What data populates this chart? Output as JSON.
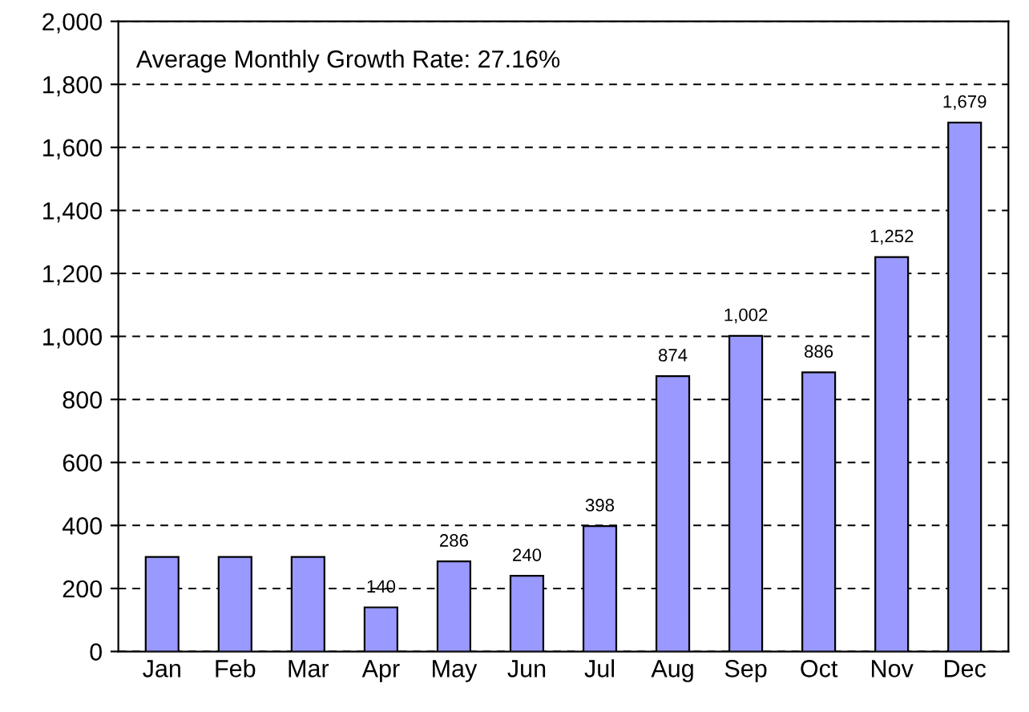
{
  "chart_data": {
    "type": "bar",
    "categories": [
      "Jan",
      "Feb",
      "Mar",
      "Apr",
      "May",
      "Jun",
      "Jul",
      "Aug",
      "Sep",
      "Oct",
      "Nov",
      "Dec"
    ],
    "values": [
      300,
      300,
      300,
      140,
      286,
      240,
      398,
      874,
      1002,
      886,
      1252,
      1679
    ],
    "value_labels": [
      null,
      null,
      null,
      "140",
      "286",
      "240",
      "398",
      "874",
      "1,002",
      "886",
      "1,252",
      "1,679"
    ],
    "color": "#9999ff",
    "ylim": [
      0,
      2000
    ],
    "yticks": [
      {
        "value": 0,
        "label": "0"
      },
      {
        "value": 200,
        "label": "200"
      },
      {
        "value": 400,
        "label": "400"
      },
      {
        "value": 600,
        "label": "600"
      },
      {
        "value": 800,
        "label": "800"
      },
      {
        "value": 1000,
        "label": "1,000"
      },
      {
        "value": 1200,
        "label": "1,200"
      },
      {
        "value": 1400,
        "label": "1,400"
      },
      {
        "value": 1600,
        "label": "1,600"
      },
      {
        "value": 1800,
        "label": "1,800"
      },
      {
        "value": 2000,
        "label": "2,000"
      }
    ],
    "grid": "y",
    "annotations": [
      "Average Monthly Growth Rate: 27.16%"
    ]
  }
}
